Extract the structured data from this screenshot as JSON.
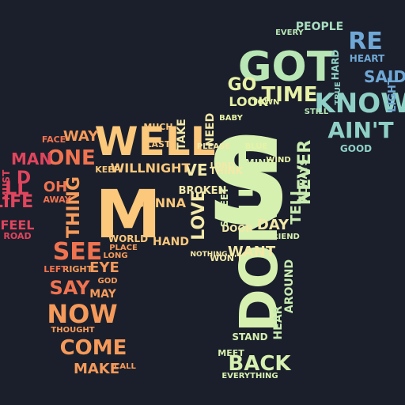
{
  "background": "#1b1f2b",
  "palette": {
    "red": "#e0455d",
    "orange_red": "#f07350",
    "orange": "#f59a5a",
    "peach": "#fbc87c",
    "pale": "#f3e9a8",
    "mint": "#d6f0b0",
    "green": "#b8e6b4",
    "teal": "#8fd0c6",
    "blue": "#6fa8d6",
    "indigo": "#5a6fc0"
  },
  "words": [
    {
      "text": "DON'T",
      "color": "#d6f0b0"
    },
    {
      "text": "S",
      "color": "#d6f0b0"
    },
    {
      "text": "GOT",
      "color": "#b8e6b4"
    },
    {
      "text": "WELL",
      "color": "#fbc87c"
    },
    {
      "text": "M",
      "color": "#fbc87c"
    },
    {
      "text": "KNOW",
      "color": "#8fd0c6"
    },
    {
      "text": "RE",
      "color": "#6fa8d6"
    },
    {
      "text": "AIN'T",
      "color": "#8fd0c6"
    },
    {
      "text": "TIME",
      "color": "#e7f2a6"
    },
    {
      "text": "GO",
      "color": "#e7f2a6"
    },
    {
      "text": "LOOK",
      "color": "#e7f2a6"
    },
    {
      "text": "SAID",
      "color": "#6fa8d6"
    },
    {
      "text": "HEART",
      "color": "#6fa8d6"
    },
    {
      "text": "LIGHT",
      "color": "#6fa8d6"
    },
    {
      "text": "PEOPLE",
      "color": "#a8dcc0"
    },
    {
      "text": "GOOD",
      "color": "#8fd0c6"
    },
    {
      "text": "NEVER",
      "color": "#c8ecb0"
    },
    {
      "text": "TELL",
      "color": "#c8ecb0"
    },
    {
      "text": "ALWAYS",
      "color": "#c8ecb0"
    },
    {
      "text": "HEAR",
      "color": "#c8ecb0"
    },
    {
      "text": "AROUND",
      "color": "#c8ecb0"
    },
    {
      "text": "BACK",
      "color": "#d6f0b0"
    },
    {
      "text": "DAY",
      "color": "#f3e9a8"
    },
    {
      "text": "WANT",
      "color": "#f3e9a8"
    },
    {
      "text": "WON'T",
      "color": "#f3e9a8"
    },
    {
      "text": "LOVE",
      "color": "#f3e9a8"
    },
    {
      "text": "BROKEN",
      "color": "#f3e9a8"
    },
    {
      "text": "VE",
      "color": "#f3e9a8"
    },
    {
      "text": "THINK",
      "color": "#f3e9a8"
    },
    {
      "text": "NEED",
      "color": "#f3e9a8"
    },
    {
      "text": "TAKE",
      "color": "#f3e9a8"
    },
    {
      "text": "DOOR",
      "color": "#f3e9a8"
    },
    {
      "text": "LORD",
      "color": "#f3e9a8"
    },
    {
      "text": "WILLNIGHT",
      "color": "#fbc87c"
    },
    {
      "text": "GONNA",
      "color": "#fbc87c"
    },
    {
      "text": "HAND",
      "color": "#fbc87c"
    },
    {
      "text": "WORLD",
      "color": "#fbc87c"
    },
    {
      "text": "ONE",
      "color": "#f07350"
    },
    {
      "text": "WAY",
      "color": "#f59a5a"
    },
    {
      "text": "THING",
      "color": "#f59a5a"
    },
    {
      "text": "SEE",
      "color": "#f07350"
    },
    {
      "text": "SAY",
      "color": "#f07350"
    },
    {
      "text": "NOW",
      "color": "#f59a5a"
    },
    {
      "text": "COME",
      "color": "#f59a5a"
    },
    {
      "text": "MAKE",
      "color": "#f59a5a"
    },
    {
      "text": "EYE",
      "color": "#f59a5a"
    },
    {
      "text": "MAY",
      "color": "#f59a5a"
    },
    {
      "text": "MAN",
      "color": "#e0455d"
    },
    {
      "text": "LIFE",
      "color": "#e0455d"
    },
    {
      "text": "FEEL",
      "color": "#e0455d"
    },
    {
      "text": "LL",
      "color": "#e0455d"
    },
    {
      "text": "D",
      "color": "#e0455d"
    },
    {
      "text": "OH",
      "color": "#f07350"
    },
    {
      "text": "FACE",
      "color": "#f07350"
    },
    {
      "text": "MUCH",
      "color": "#fbc87c"
    },
    {
      "text": "LAST",
      "color": "#fbc87c"
    },
    {
      "text": "KEEP",
      "color": "#fbc87c"
    },
    {
      "text": "MIND",
      "color": "#d6f0b0"
    },
    {
      "text": "STREET",
      "color": "#d6f0b0"
    },
    {
      "text": "STAND",
      "color": "#d6f0b0"
    },
    {
      "text": "MEET",
      "color": "#d6f0b0"
    },
    {
      "text": "EVERYTHING",
      "color": "#d6f0b0"
    },
    {
      "text": "BABY",
      "color": "#e7f2a6"
    },
    {
      "text": "TOWN",
      "color": "#e7f2a6"
    },
    {
      "text": "EVERY",
      "color": "#b8e6b4"
    },
    {
      "text": "FRIEND",
      "color": "#d6f0b0"
    },
    {
      "text": "LONG",
      "color": "#f59a5a"
    },
    {
      "text": "PLACE",
      "color": "#f59a5a"
    },
    {
      "text": "RIGHT",
      "color": "#f59a5a"
    },
    {
      "text": "BLUE",
      "color": "#e7f2a6"
    },
    {
      "text": "WIND",
      "color": "#e7f2a6"
    },
    {
      "text": "LEFT",
      "color": "#f07350"
    },
    {
      "text": "ROAD",
      "color": "#e0455d"
    },
    {
      "text": "CALL",
      "color": "#f59a5a"
    },
    {
      "text": "GOD",
      "color": "#f59a5a"
    },
    {
      "text": "PLEASE",
      "color": "#f3e9a8"
    },
    {
      "text": "NOTHING",
      "color": "#f3e9a8"
    },
    {
      "text": "HARD",
      "color": "#8fd0c6"
    },
    {
      "text": "TRUE",
      "color": "#8fd0c6"
    },
    {
      "text": "STILL",
      "color": "#b8e6b4"
    },
    {
      "text": "MUST",
      "color": "#e0455d"
    },
    {
      "text": "AWAY",
      "color": "#f07350"
    },
    {
      "text": "THOUGHT",
      "color": "#f59a5a"
    }
  ]
}
